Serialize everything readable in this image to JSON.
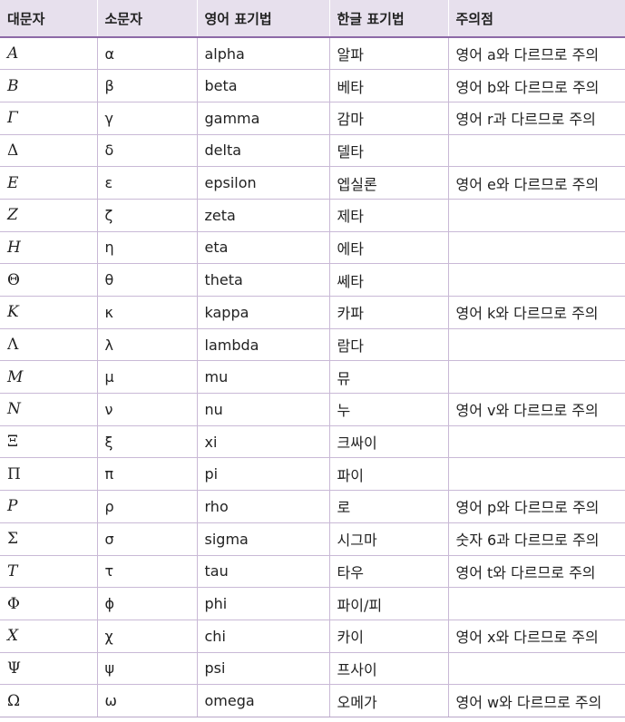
{
  "table": {
    "headers": [
      "대문자",
      "소문자",
      "영어 표기법",
      "한글 표기법",
      "주의점"
    ],
    "rows": [
      {
        "upper": "A",
        "lower": "α",
        "english": "alpha",
        "korean": "알파",
        "note": "영어 a와 다르므로 주의"
      },
      {
        "upper": "B",
        "lower": "β",
        "english": "beta",
        "korean": "베타",
        "note": "영어 b와 다르므로 주의"
      },
      {
        "upper": "Γ",
        "lower": "γ",
        "english": "gamma",
        "korean": "감마",
        "note": "영어 r과 다르므로 주의"
      },
      {
        "upper": "Δ",
        "lower": "δ",
        "english": "delta",
        "korean": "델타",
        "note": ""
      },
      {
        "upper": "E",
        "lower": "ε",
        "english": "epsilon",
        "korean": "엡실론",
        "note": "영어 e와 다르므로 주의"
      },
      {
        "upper": "Z",
        "lower": "ζ",
        "english": "zeta",
        "korean": "제타",
        "note": ""
      },
      {
        "upper": "H",
        "lower": "η",
        "english": "eta",
        "korean": "에타",
        "note": ""
      },
      {
        "upper": "Θ",
        "lower": "θ",
        "english": "theta",
        "korean": "쎄타",
        "note": ""
      },
      {
        "upper": "K",
        "lower": "κ",
        "english": "kappa",
        "korean": "카파",
        "note": "영어 k와 다르므로 주의"
      },
      {
        "upper": "Λ",
        "lower": "λ",
        "english": "lambda",
        "korean": "람다",
        "note": ""
      },
      {
        "upper": "M",
        "lower": "μ",
        "english": "mu",
        "korean": "뮤",
        "note": ""
      },
      {
        "upper": "N",
        "lower": "ν",
        "english": "nu",
        "korean": "누",
        "note": "영어 v와 다르므로 주의"
      },
      {
        "upper": "Ξ",
        "lower": "ξ",
        "english": "xi",
        "korean": "크싸이",
        "note": ""
      },
      {
        "upper": "Π",
        "lower": "π",
        "english": "pi",
        "korean": "파이",
        "note": ""
      },
      {
        "upper": "P",
        "lower": "ρ",
        "english": "rho",
        "korean": "로",
        "note": "영어 p와 다르므로 주의"
      },
      {
        "upper": "Σ",
        "lower": "σ",
        "english": "sigma",
        "korean": "시그마",
        "note": "숫자 6과 다르므로 주의"
      },
      {
        "upper": "T",
        "lower": "τ",
        "english": "tau",
        "korean": "타우",
        "note": "영어 t와 다르므로 주의"
      },
      {
        "upper": "Φ",
        "lower": "ϕ",
        "english": "phi",
        "korean": "파이/피",
        "note": ""
      },
      {
        "upper": "X",
        "lower": "χ",
        "english": "chi",
        "korean": "카이",
        "note": "영어 x와 다르므로 주의"
      },
      {
        "upper": "Ψ",
        "lower": "ψ",
        "english": "psi",
        "korean": "프사이",
        "note": ""
      },
      {
        "upper": "Ω",
        "lower": "ω",
        "english": "omega",
        "korean": "오메가",
        "note": "영어 w와 다르므로 주의"
      }
    ]
  }
}
